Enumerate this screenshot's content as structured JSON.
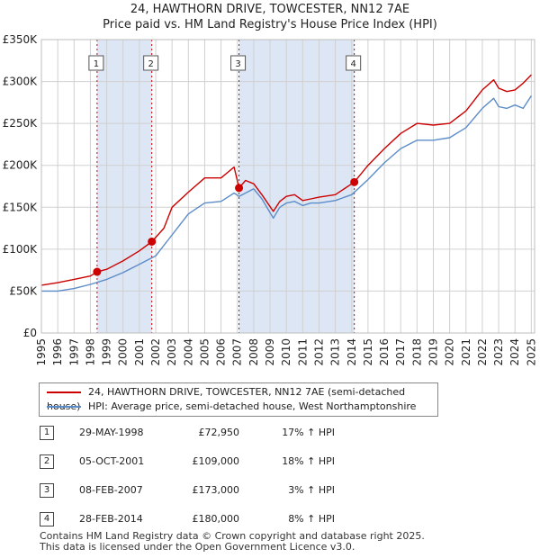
{
  "chart_data": {
    "type": "line",
    "title": "24, HAWTHORN DRIVE, TOWCESTER, NN12 7AE",
    "subtitle": "Price paid vs. HM Land Registry's House Price Index (HPI)",
    "xlim": [
      1995,
      2025.2
    ],
    "ylim": [
      0,
      350000
    ],
    "y_ticks": [
      0,
      50000,
      100000,
      150000,
      200000,
      250000,
      300000,
      350000
    ],
    "y_tick_labels": [
      "£0",
      "£50K",
      "£100K",
      "£150K",
      "£200K",
      "£250K",
      "£300K",
      "£350K"
    ],
    "x_ticks": [
      1995,
      1996,
      1997,
      1998,
      1999,
      2000,
      2001,
      2002,
      2003,
      2004,
      2005,
      2006,
      2007,
      2008,
      2009,
      2010,
      2011,
      2012,
      2013,
      2014,
      2015,
      2016,
      2017,
      2018,
      2019,
      2020,
      2021,
      2022,
      2023,
      2024,
      2025
    ],
    "x_tick_labels": [
      "1995",
      "1996",
      "1997",
      "1998",
      "1999",
      "2000",
      "2001",
      "2002",
      "2003",
      "2004",
      "2005",
      "2006",
      "2007",
      "2008",
      "2009",
      "2010",
      "2011",
      "2012",
      "2013",
      "2014",
      "2015",
      "2016",
      "2017",
      "2018",
      "2019",
      "2020",
      "2021",
      "2022",
      "2023",
      "2024",
      "2025"
    ],
    "grid": true,
    "series": [
      {
        "name": "24, HAWTHORN DRIVE, TOWCESTER, NN12 7AE (semi-detached house)",
        "color": "#cc0000",
        "x": [
          1995.0,
          1996.0,
          1997.0,
          1998.0,
          1998.41,
          1999.0,
          2000.0,
          2001.0,
          2001.76,
          2002.5,
          2003.0,
          2004.0,
          2005.0,
          2006.0,
          2006.8,
          2007.1,
          2007.5,
          2008.0,
          2008.5,
          2009.2,
          2009.6,
          2010.0,
          2010.5,
          2011.0,
          2011.5,
          2012.0,
          2013.0,
          2014.16,
          2015.0,
          2016.0,
          2017.0,
          2018.0,
          2019.0,
          2020.0,
          2021.0,
          2022.0,
          2022.7,
          2023.0,
          2023.5,
          2024.0,
          2024.5,
          2025.0
        ],
        "values": [
          57000,
          60000,
          64000,
          68000,
          72950,
          76000,
          86000,
          98000,
          109000,
          125000,
          150000,
          168000,
          185000,
          185000,
          198000,
          173000,
          182000,
          178000,
          165000,
          145000,
          157000,
          163000,
          165000,
          158000,
          160000,
          162000,
          165000,
          180000,
          200000,
          220000,
          238000,
          250000,
          248000,
          250000,
          265000,
          290000,
          302000,
          292000,
          288000,
          290000,
          298000,
          308000
        ]
      },
      {
        "name": "HPI: Average price, semi-detached house, West Northamptonshire",
        "color": "#5b8cc8",
        "x": [
          1995.0,
          1996.0,
          1997.0,
          1998.0,
          1999.0,
          2000.0,
          2001.0,
          2002.0,
          2003.0,
          2004.0,
          2005.0,
          2006.0,
          2006.8,
          2007.1,
          2008.0,
          2008.5,
          2009.2,
          2009.6,
          2010.0,
          2010.5,
          2011.0,
          2011.5,
          2012.0,
          2013.0,
          2014.0,
          2015.0,
          2016.0,
          2017.0,
          2018.0,
          2019.0,
          2020.0,
          2021.0,
          2022.0,
          2022.7,
          2023.0,
          2023.5,
          2024.0,
          2024.5,
          2025.0
        ],
        "values": [
          50000,
          50000,
          53000,
          58000,
          64000,
          72000,
          82000,
          92000,
          117000,
          142000,
          155000,
          157000,
          167000,
          163000,
          172000,
          160000,
          137000,
          150000,
          155000,
          157000,
          152000,
          155000,
          155000,
          158000,
          165000,
          183000,
          203000,
          220000,
          230000,
          230000,
          233000,
          245000,
          268000,
          280000,
          270000,
          268000,
          272000,
          268000,
          283000
        ]
      }
    ],
    "sales": [
      {
        "label": "1",
        "x": 1998.41,
        "price": 72950
      },
      {
        "label": "2",
        "x": 2001.76,
        "price": 109000
      },
      {
        "label": "3",
        "x": 2007.1,
        "price": 173000
      },
      {
        "label": "4",
        "x": 2014.16,
        "price": 180000
      }
    ],
    "shaded_spans": [
      [
        1998.41,
        2001.76
      ],
      [
        2007.1,
        2014.16
      ]
    ]
  },
  "legend": {
    "property_label": "24, HAWTHORN DRIVE, TOWCESTER, NN12 7AE (semi-detached house)",
    "hpi_label": "HPI: Average price, semi-detached house, West Northamptonshire",
    "property_color": "#cc0000",
    "hpi_color": "#5b8cc8"
  },
  "transactions": [
    {
      "num": "1",
      "date": "29-MAY-1998",
      "price": "£72,950",
      "hpi": "17% ↑ HPI"
    },
    {
      "num": "2",
      "date": "05-OCT-2001",
      "price": "£109,000",
      "hpi": "18% ↑ HPI"
    },
    {
      "num": "3",
      "date": "08-FEB-2007",
      "price": "£173,000",
      "hpi": "3% ↑ HPI"
    },
    {
      "num": "4",
      "date": "28-FEB-2014",
      "price": "£180,000",
      "hpi": "8% ↑ HPI"
    }
  ],
  "footer": {
    "line1": "Contains HM Land Registry data © Crown copyright and database right 2025.",
    "line2": "This data is licensed under the Open Government Licence v3.0."
  }
}
